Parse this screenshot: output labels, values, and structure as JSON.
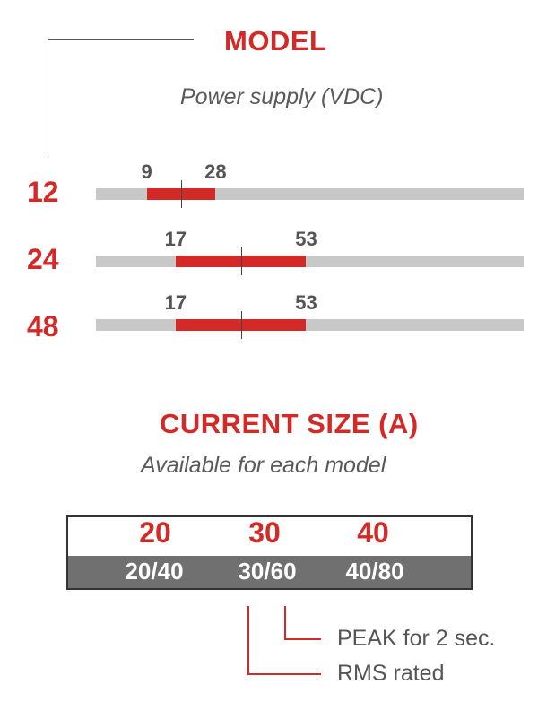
{
  "model_section": {
    "title": "MODEL",
    "subtitle": "Power supply (VDC)"
  },
  "models": [
    {
      "label": "12",
      "min": "9",
      "max": "28",
      "min_v": 9,
      "max_v": 28,
      "mid_v": 18.5
    },
    {
      "label": "24",
      "min": "17",
      "max": "53",
      "min_v": 17,
      "max_v": 53,
      "mid_v": 35
    },
    {
      "label": "48",
      "min": "17",
      "max": "53",
      "min_v": 17,
      "max_v": 53,
      "mid_v": 35
    }
  ],
  "scale": {
    "min": -5,
    "max": 113
  },
  "current_section": {
    "title": "CURRENT SIZE (A)",
    "subtitle": "Available for each model"
  },
  "sizes": [
    {
      "size": "20",
      "rating": "20/40"
    },
    {
      "size": "30",
      "rating": "30/60"
    },
    {
      "size": "40",
      "rating": "40/80"
    }
  ],
  "legend": {
    "peak": "PEAK for 2 sec.",
    "rms": "RMS rated"
  },
  "colors": {
    "accent": "#d42a27",
    "track": "#c8c8c8",
    "band": "#707070",
    "text": "#555555"
  }
}
